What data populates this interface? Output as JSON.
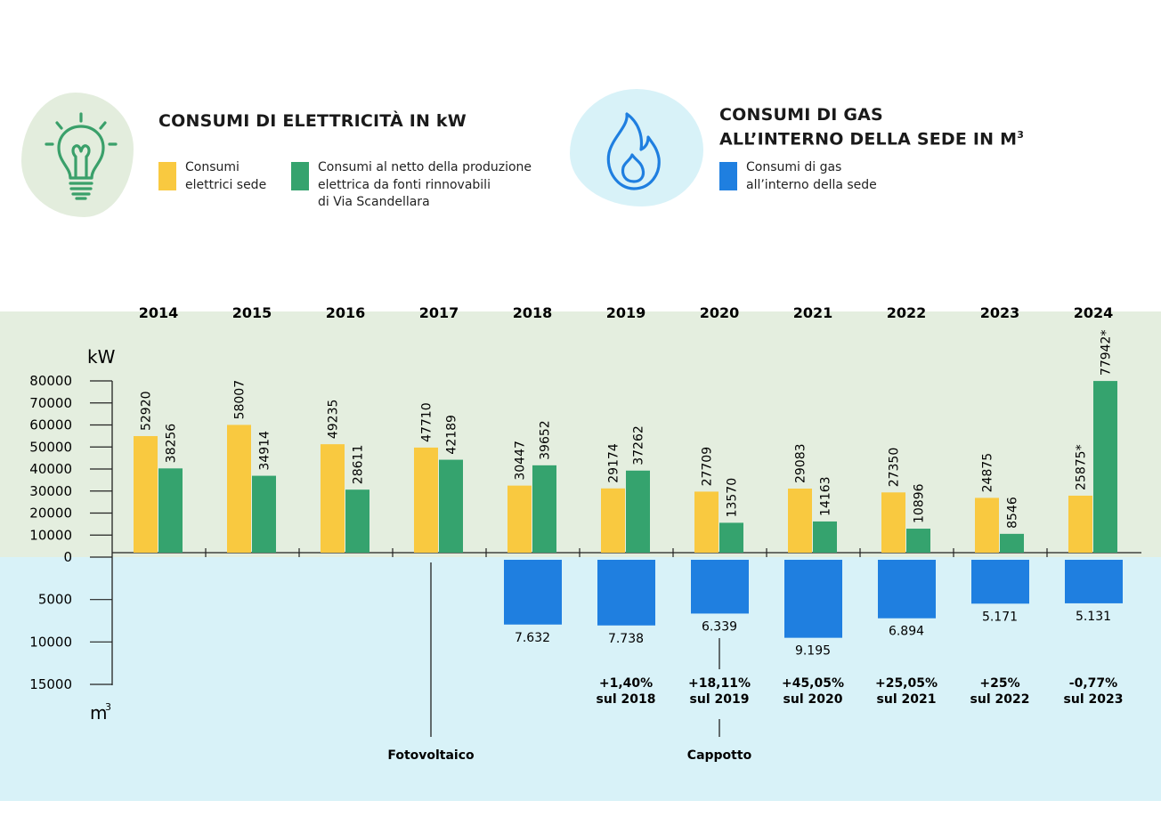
{
  "elec_title": "CONSUMI DI ELETTRICITÀ IN kW",
  "gas_title_line1": "CONSUMI DI GAS",
  "gas_title_line2": "ALL’INTERNO DELLA SEDE  IN M",
  "gas_title_sup": "3",
  "legend": [
    {
      "color": "#f9c940",
      "text": "Consumi\nelettrici sede"
    },
    {
      "color": "#35a36e",
      "text": "Consumi al netto della produzione\nelettrica da fonti rinnovabili\ndi Via Scandellara"
    },
    {
      "color": "#1f7fe0",
      "text": "Consumi di gas\nall’interno della sede"
    }
  ],
  "colors": {
    "yellow": "#f9c940",
    "green": "#35a36e",
    "blue": "#1f7fe0",
    "green_band": "#e4eedf",
    "blue_band": "#d8f2f8",
    "icon_green": "#3aa06a",
    "icon_blue": "#1f7fe0"
  },
  "icons": {
    "elec": "lightbulb-icon",
    "gas": "flame-icon"
  },
  "chart_data": {
    "type": "bar",
    "categories": [
      "2014",
      "2015",
      "2016",
      "2017",
      "2018",
      "2019",
      "2020",
      "2021",
      "2022",
      "2023",
      "2024"
    ],
    "upper_axis": {
      "unit": "kW",
      "ylim": [
        0,
        80000
      ],
      "ticks": [
        "80000",
        "70000",
        "60000",
        "50000",
        "40000",
        "30000",
        "20000",
        "10000",
        "0"
      ]
    },
    "lower_axis": {
      "unit": "m",
      "unit_sup": "3",
      "ylim": [
        0,
        15000
      ],
      "ticks": [
        "5000",
        "10000",
        "15000"
      ]
    },
    "series": [
      {
        "key": "elettrici",
        "values": [
          52920,
          58007,
          49235,
          47710,
          30447,
          29174,
          27709,
          29083,
          27350,
          24875,
          25875
        ],
        "labels": [
          "52920",
          "58007",
          "49235",
          "47710",
          "30447",
          "29174",
          "27709",
          "29083",
          "27350",
          "24875",
          "25875*"
        ]
      },
      {
        "key": "netto",
        "values": [
          38256,
          34914,
          28611,
          42189,
          39652,
          37262,
          13570,
          14163,
          10896,
          8546,
          77942
        ],
        "labels": [
          "38256",
          "34914",
          "28611",
          "42189",
          "39652",
          "37262",
          "13570",
          "14163",
          "10896",
          "8546",
          "77942*"
        ]
      },
      {
        "key": "gas",
        "values": [
          null,
          null,
          null,
          null,
          7632,
          7738,
          6339,
          9195,
          6894,
          5171,
          5131
        ],
        "labels": [
          "",
          "",
          "",
          "",
          "7.632",
          "7.738",
          "6.339",
          "9.195",
          "6.894",
          "5.171",
          "5.131"
        ]
      }
    ],
    "changes": [
      {
        "year": "2019",
        "line1": "+1,40%",
        "line2": "sul 2018"
      },
      {
        "year": "2020",
        "line1": "+18,11%",
        "line2": "sul 2019"
      },
      {
        "year": "2021",
        "line1": "+45,05%",
        "line2": "sul 2020"
      },
      {
        "year": "2022",
        "line1": "+25,05%",
        "line2": "sul 2021"
      },
      {
        "year": "2023",
        "line1": "+25%",
        "line2": "sul 2022"
      },
      {
        "year": "2024",
        "line1": "-0,77%",
        "line2": "sul 2023"
      }
    ],
    "annotations": [
      {
        "year": "2017",
        "text": "Fotovoltaico"
      },
      {
        "year": "2020",
        "text": "Cappotto"
      }
    ]
  }
}
